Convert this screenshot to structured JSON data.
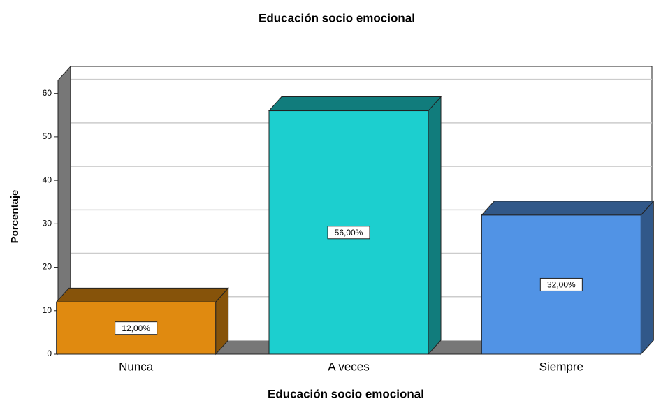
{
  "chart_data": {
    "type": "bar3d",
    "title": "Educación socio emocional",
    "xlabel": "Educación socio emocional",
    "ylabel": "Porcentaje",
    "categories": [
      "Nunca",
      "A veces",
      "Siempre"
    ],
    "values": [
      12,
      56,
      32
    ],
    "value_labels": [
      "12,00%",
      "56,00%",
      "32,00%"
    ],
    "colors": [
      "#e08a10",
      "#1ccfcf",
      "#5193e5"
    ],
    "ylim": [
      0,
      63
    ],
    "yticks": [
      0,
      10,
      20,
      30,
      40,
      50,
      60
    ],
    "grid": true
  }
}
